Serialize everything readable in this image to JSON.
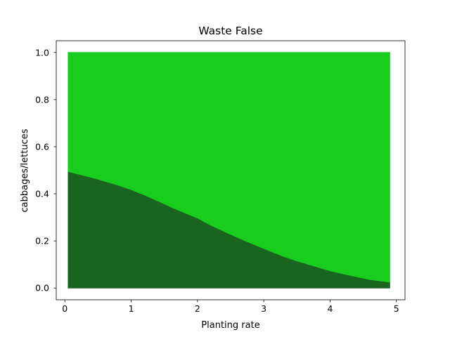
{
  "chart_data": {
    "type": "area",
    "title": "Waste False",
    "xlabel": "Planting rate",
    "ylabel": "cabbages/lettuces",
    "xlim": [
      -0.13,
      5.13
    ],
    "ylim": [
      -0.05,
      1.05
    ],
    "xticks": [
      0,
      1,
      2,
      3,
      4,
      5
    ],
    "yticks": [
      0.0,
      0.2,
      0.4,
      0.6,
      0.8,
      1.0
    ],
    "xtick_labels": [
      "0",
      "1",
      "2",
      "3",
      "4",
      "5"
    ],
    "ytick_labels": [
      "0.0",
      "0.2",
      "0.4",
      "0.6",
      "0.8",
      "1.0"
    ],
    "grid": false,
    "legend": "none",
    "x": [
      0.05,
      0.3,
      0.5,
      0.8,
      1.0,
      1.2,
      1.5,
      1.7,
      2.0,
      2.2,
      2.5,
      2.7,
      3.0,
      3.3,
      3.5,
      3.8,
      4.0,
      4.3,
      4.6,
      4.9
    ],
    "series": [
      {
        "color": "#1b6320",
        "values": [
          0.495,
          0.477,
          0.462,
          0.437,
          0.418,
          0.395,
          0.357,
          0.332,
          0.297,
          0.267,
          0.228,
          0.203,
          0.168,
          0.134,
          0.115,
          0.09,
          0.073,
          0.054,
          0.036,
          0.025
        ]
      },
      {
        "color": "#19cc1e",
        "values": [
          0.505,
          0.523,
          0.538,
          0.563,
          0.582,
          0.605,
          0.643,
          0.668,
          0.703,
          0.733,
          0.772,
          0.797,
          0.832,
          0.866,
          0.885,
          0.91,
          0.927,
          0.946,
          0.964,
          0.975
        ]
      }
    ]
  }
}
